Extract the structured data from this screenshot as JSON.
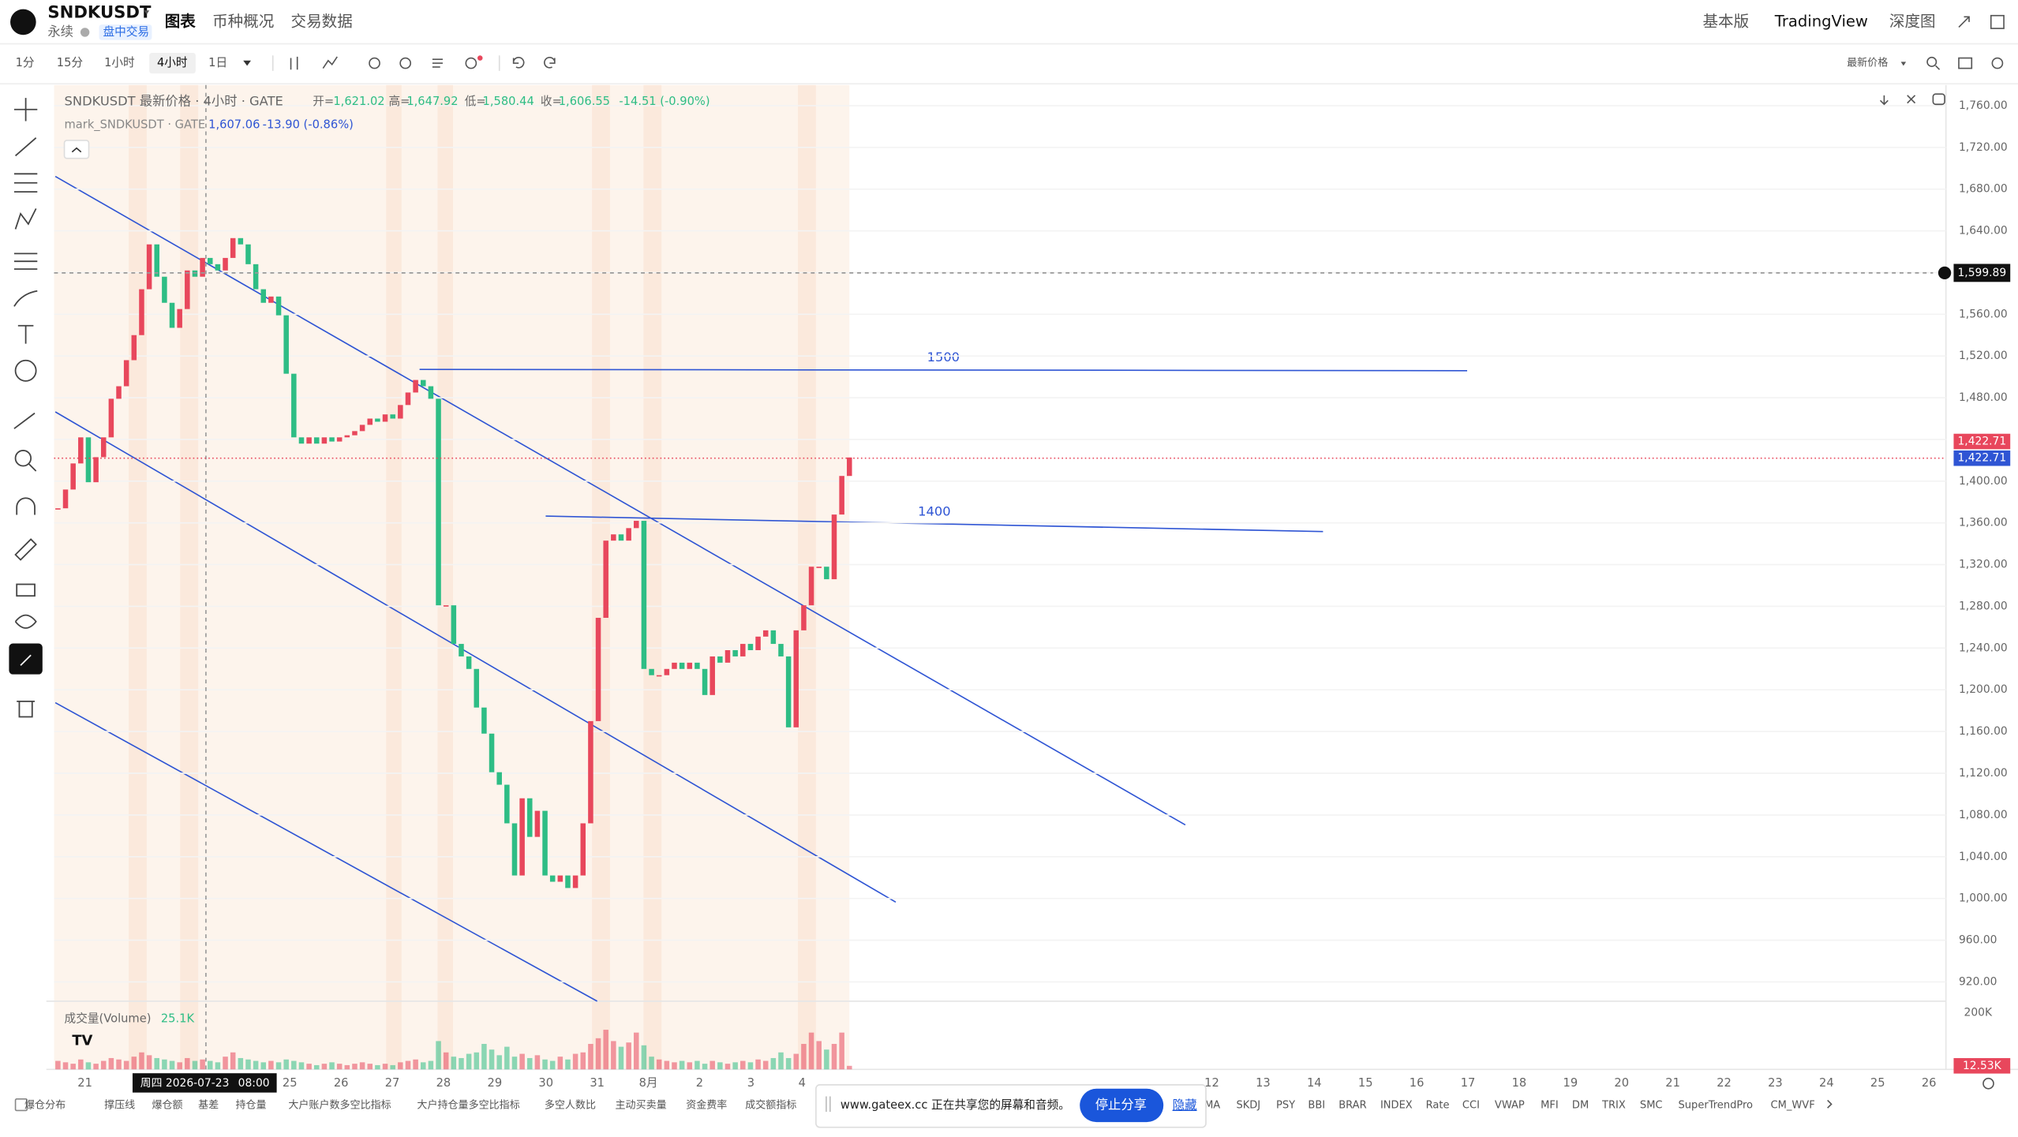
{
  "header": {
    "symbol": "SNDKUSDT",
    "contract": "永续",
    "badge": "盘中交易",
    "tabs": [
      "图表",
      "币种概况",
      "交易数据"
    ],
    "right": [
      "基本版",
      "TradingView",
      "深度图"
    ]
  },
  "toolbar": {
    "intervals": [
      "1分",
      "15分",
      "1小时",
      "4小时",
      "1日"
    ],
    "price_source": "最新价格"
  },
  "legend": {
    "title": "SNDKUSDT 最新价格 · 4小时 · GATE",
    "open_label": "开=",
    "open": "1,621.02",
    "high_label": "高=",
    "high": "1,647.92",
    "low_label": "低=",
    "low": "1,580.44",
    "close_label": "收=",
    "close": "1,606.55",
    "change": "-14.51 (-0.90%)",
    "mark_title": "mark_SNDKUSDT · GATE",
    "mark_value": "1,607.06",
    "mark_change": "-13.90 (-0.86%)",
    "volume_title": "成交量(Volume)",
    "volume_value": "25.1K"
  },
  "chart": {
    "ylim": [
      920,
      1760
    ],
    "yticks": [
      {
        "value": 1760,
        "label": "1,760.00"
      },
      {
        "value": 1720,
        "label": "1,720.00"
      },
      {
        "value": 1680,
        "label": "1,680.00"
      },
      {
        "value": 1640,
        "label": "1,640.00"
      },
      {
        "value": 1600,
        "label": "1,600.00"
      },
      {
        "value": 1560,
        "label": "1,560.00"
      },
      {
        "value": 1520,
        "label": "1,520.00"
      },
      {
        "value": 1480,
        "label": "1,480.00"
      },
      {
        "value": 1440,
        "label": "1,440.00"
      },
      {
        "value": 1400,
        "label": "1,400.00"
      },
      {
        "value": 1360,
        "label": "1,360.00"
      },
      {
        "value": 1320,
        "label": "1,320.00"
      },
      {
        "value": 1280,
        "label": "1,280.00"
      },
      {
        "value": 1240,
        "label": "1,240.00"
      },
      {
        "value": 1200,
        "label": "1,200.00"
      },
      {
        "value": 1160,
        "label": "1,160.00"
      },
      {
        "value": 1120,
        "label": "1,120.00"
      },
      {
        "value": 1080,
        "label": "1,080.00"
      },
      {
        "value": 1040,
        "label": "1,040.00"
      },
      {
        "value": 1000,
        "label": "1,000.00"
      },
      {
        "value": 960,
        "label": "960.00"
      },
      {
        "value": 920,
        "label": "920.00"
      }
    ],
    "closes": [
      1374,
      1392,
      1417,
      1442,
      1399,
      1423,
      1442,
      1479,
      1491,
      1516,
      1540,
      1584,
      1627,
      1596,
      1571,
      1547,
      1565,
      1602,
      1596,
      1614,
      1608,
      1602,
      1614,
      1633,
      1627,
      1608,
      1584,
      1571,
      1577,
      1559,
      1503,
      1442,
      1436,
      1442,
      1436,
      1442,
      1438,
      1442,
      1444,
      1448,
      1454,
      1460,
      1457,
      1464,
      1460,
      1473,
      1485,
      1497,
      1491,
      1479,
      1281,
      1281,
      1244,
      1232,
      1220,
      1183,
      1158,
      1121,
      1109,
      1072,
      1022,
      1096,
      1059,
      1084,
      1022,
      1016,
      1022,
      1010,
      1022,
      1072,
      1170,
      1269,
      1343,
      1349,
      1343,
      1355,
      1362,
      1220,
      1214,
      1214,
      1220,
      1226,
      1220,
      1226,
      1220,
      1195,
      1232,
      1226,
      1238,
      1232,
      1244,
      1238,
      1251,
      1257,
      1244,
      1232,
      1164,
      1257,
      1281,
      1318,
      1318,
      1306,
      1368,
      1405,
      1422.71
    ],
    "volumes": [
      30000,
      25000,
      20000,
      35000,
      25000,
      20000,
      30000,
      40000,
      35000,
      30000,
      45000,
      60000,
      50000,
      40000,
      35000,
      30000,
      25000,
      40000,
      30000,
      35000,
      30000,
      25000,
      45000,
      60000,
      40000,
      35000,
      30000,
      25000,
      30000,
      25000,
      35000,
      30000,
      25000,
      20000,
      15000,
      20000,
      25000,
      20000,
      15000,
      20000,
      25000,
      20000,
      15000,
      20000,
      15000,
      25000,
      30000,
      35000,
      25000,
      30000,
      100000,
      60000,
      45000,
      40000,
      55000,
      60000,
      90000,
      70000,
      50000,
      80000,
      45000,
      55000,
      40000,
      50000,
      35000,
      30000,
      45000,
      35000,
      55000,
      60000,
      90000,
      110000,
      140000,
      100000,
      80000,
      95000,
      130000,
      85000,
      45000,
      35000,
      30000,
      25000,
      30000,
      25000,
      30000,
      20000,
      30000,
      25000,
      20000,
      25000,
      30000,
      25000,
      35000,
      30000,
      40000,
      60000,
      40000,
      55000,
      90000,
      130000,
      100000,
      70000,
      90000,
      130000,
      12530
    ],
    "volume_ylim": [
      0,
      200000
    ],
    "volume_ticks": [
      {
        "value": 200000,
        "label": "200K"
      }
    ],
    "volume_last": {
      "value": 12530,
      "label": "12.53K"
    },
    "crosshair_price": {
      "value": 1599.89,
      "label": "1,599.89"
    },
    "last_price": {
      "value": 1422.71,
      "label": "1,422.71"
    },
    "drawings": [
      "1500",
      "1400"
    ],
    "xticks": [
      "21",
      "25",
      "26",
      "27",
      "28",
      "29",
      "30",
      "31",
      "8月",
      "2",
      "3",
      "4",
      "12",
      "13",
      "14",
      "15",
      "16",
      "17",
      "18",
      "19",
      "20",
      "21",
      "22",
      "23",
      "24",
      "25",
      "26"
    ],
    "cursor": {
      "date": "周四 2026-07-23",
      "time": "08:00"
    }
  },
  "indicators": [
    "爆仓分布",
    "撑压线",
    "爆仓额",
    "基差",
    "持仓量",
    "大户账户数多空比指标",
    "大户持仓量多空比指标",
    "多空人数比",
    "主动买卖量",
    "资金费率",
    "成交额指标",
    "MA",
    "SKDJ",
    "PSY",
    "BBI",
    "BRAR",
    "INDEX",
    "Rate",
    "CCI",
    "VWAP",
    "MFI",
    "DM",
    "TRIX",
    "SMC",
    "SuperTrendPro",
    "CM_WVF"
  ],
  "share": {
    "message": "www.gateex.cc 正在共享您的屏幕和音频。",
    "stop": "停止分享",
    "hide": "隐藏"
  }
}
